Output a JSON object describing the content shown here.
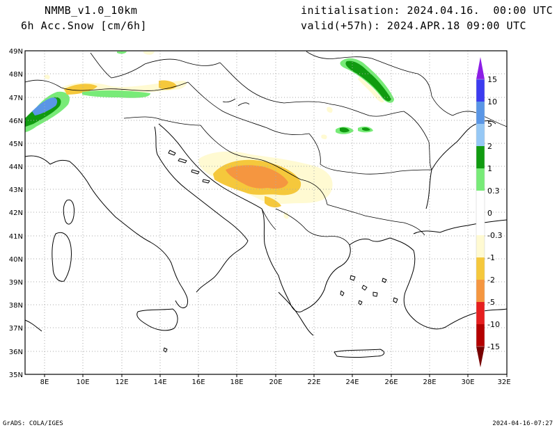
{
  "header": {
    "model": "NMMB_v1.0_10km",
    "variable": "6h Acc.Snow [cm/6h]",
    "init": "initialisation: 2024.04.16.  00:00 UTC",
    "valid": "valid(+57h): 2024.APR.18 09:00 UTC"
  },
  "map": {
    "lon_range": [
      7,
      32
    ],
    "lat_range": [
      35,
      49
    ],
    "lon_ticks": [
      "8E",
      "10E",
      "12E",
      "14E",
      "16E",
      "18E",
      "20E",
      "22E",
      "24E",
      "26E",
      "28E",
      "30E",
      "32E"
    ],
    "lat_ticks": [
      "49N",
      "48N",
      "47N",
      "46N",
      "45N",
      "44N",
      "43N",
      "42N",
      "41N",
      "40N",
      "39N",
      "38N",
      "37N",
      "36N",
      "35N"
    ],
    "grid": "dotted"
  },
  "colorbar": {
    "labels": [
      "15",
      "10",
      "5",
      "2",
      "1",
      "0.3",
      "0",
      "-0.3",
      "-1",
      "-2",
      "-5",
      "-10",
      "-15"
    ],
    "colors": {
      "c15": "#8c1ee6",
      "c10": "#3c3cf0",
      "c5": "#5a96e6",
      "c2": "#96c8f5",
      "c1": "#109b10",
      "c03": "#78eb78",
      "n03": "#fffad2",
      "n1": "#f5c83c",
      "n2": "#f59640",
      "n5": "#e61e1e",
      "n10": "#b40000",
      "n15": "#780000"
    }
  },
  "footer": {
    "left": "GrADS: COLA/IGES",
    "right": "2024-04-16-07:27"
  }
}
